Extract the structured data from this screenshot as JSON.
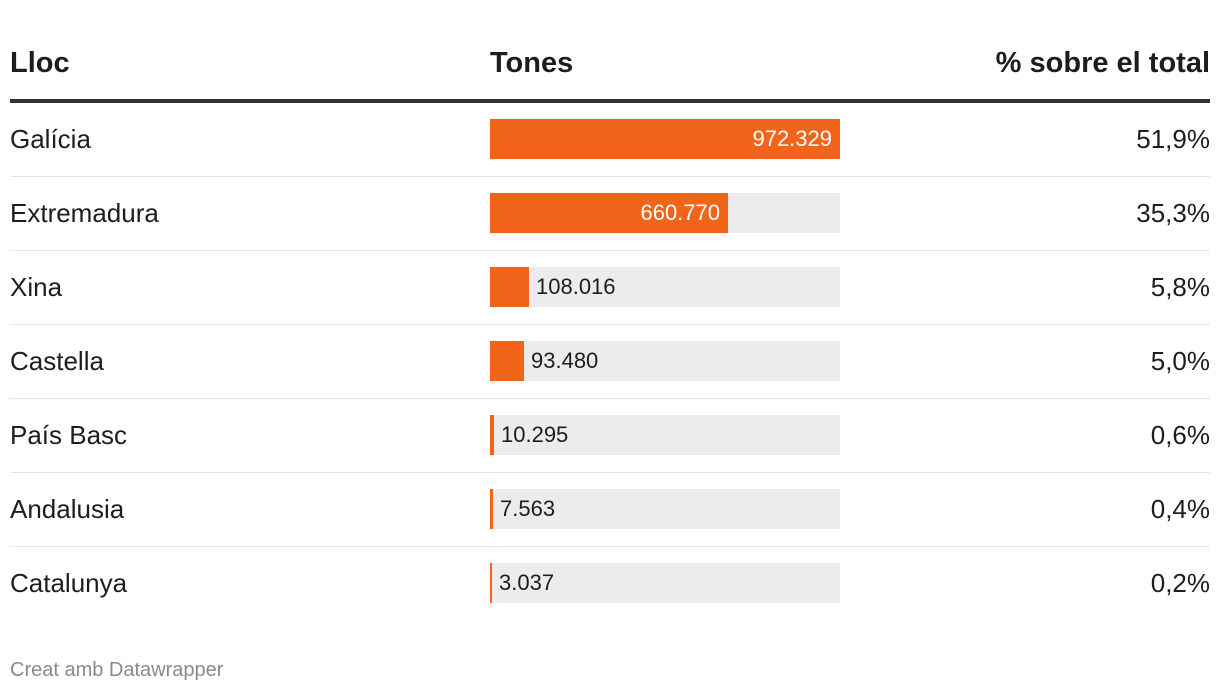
{
  "chart_data": {
    "type": "table",
    "columns": [
      "Lloc",
      "Tones",
      "% sobre el total"
    ],
    "max_value": 972329,
    "rows": [
      {
        "place": "Galícia",
        "value": 972329,
        "value_label": "972.329",
        "pct": "51,9%"
      },
      {
        "place": "Extremadura",
        "value": 660770,
        "value_label": "660.770",
        "pct": "35,3%"
      },
      {
        "place": "Xina",
        "value": 108016,
        "value_label": "108.016",
        "pct": "5,8%"
      },
      {
        "place": "Castella",
        "value": 93480,
        "value_label": "93.480",
        "pct": "5,0%"
      },
      {
        "place": "País Basc",
        "value": 10295,
        "value_label": "10.295",
        "pct": "0,6%"
      },
      {
        "place": "Andalusia",
        "value": 7563,
        "value_label": "7.563",
        "pct": "0,4%"
      },
      {
        "place": "Catalunya",
        "value": 3037,
        "value_label": "3.037",
        "pct": "0,2%"
      }
    ],
    "bar_color": "#f26419",
    "track_color": "#ececec"
  },
  "footer": {
    "credit": "Creat amb Datawrapper"
  }
}
